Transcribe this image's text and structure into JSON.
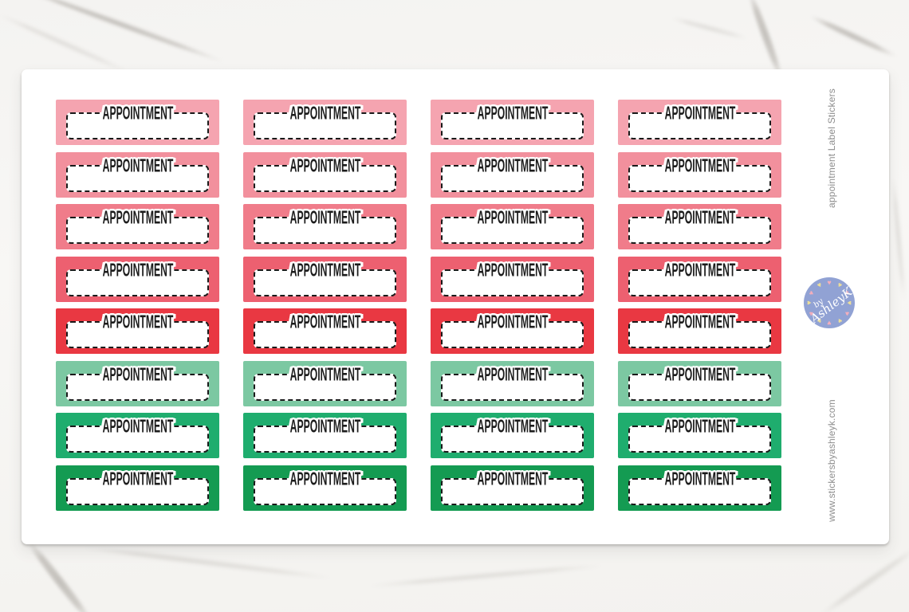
{
  "product": {
    "sticker_label": "APPOINTMENT",
    "columns": 4,
    "row_colors": [
      "#F5A4B0",
      "#F2909D",
      "#F07C8A",
      "#ED6070",
      "#E93842",
      "#7CC8A2",
      "#1FAD6E",
      "#149B52"
    ],
    "label_text_color": "#1C1C1C",
    "label_box_color": "#FFFFFF",
    "dash_color": "#1A1A1A"
  },
  "branding": {
    "side_title": "appointment Label Stickers",
    "website": "www.stickersbyashleyk.com",
    "text_color": "#8E8E8E",
    "logo": {
      "prefix": "by",
      "name": "AshleyK",
      "circle_color": "#91A2D4",
      "text_color": "#FFFFFF",
      "heart_colors": [
        "#F3AEBC",
        "#EDDF99"
      ],
      "heart_count": 12
    }
  }
}
